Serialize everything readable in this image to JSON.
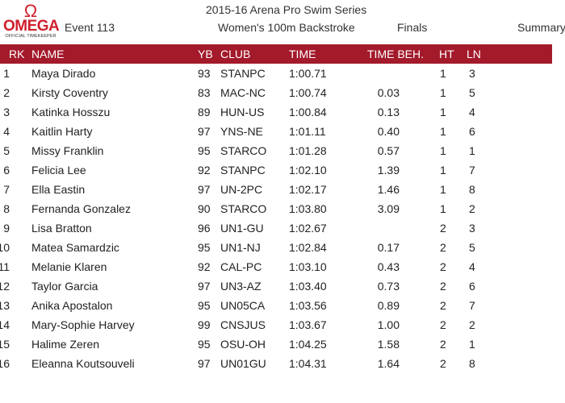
{
  "logo": {
    "symbol": "Ω",
    "word": "OMEGA",
    "sub": "OFFICIAL TIMEKEEPER"
  },
  "header": {
    "series": "2015-16 Arena Pro Swim Series",
    "event": "Event 113",
    "race": "Women's 100m Backstroke",
    "round": "Finals",
    "report": "Summary"
  },
  "columns": {
    "rk": "RK",
    "name": "NAME",
    "yb": "YB",
    "club": "CLUB",
    "time": "TIME",
    "beh": "TIME BEH.",
    "ht": "HT",
    "ln": "LN"
  },
  "colors": {
    "accent": "#a31a2b",
    "logo": "#d0202e"
  },
  "rows": [
    {
      "rk": "1",
      "name": "Maya Dirado",
      "yb": "93",
      "club": "STANPC",
      "time": "1:00.71",
      "beh": "",
      "ht": "1",
      "ln": "3"
    },
    {
      "rk": "2",
      "name": "Kirsty Coventry",
      "yb": "83",
      "club": "MAC-NC",
      "time": "1:00.74",
      "beh": "0.03",
      "ht": "1",
      "ln": "5"
    },
    {
      "rk": "3",
      "name": "Katinka Hosszu",
      "yb": "89",
      "club": "HUN-US",
      "time": "1:00.84",
      "beh": "0.13",
      "ht": "1",
      "ln": "4"
    },
    {
      "rk": "4",
      "name": "Kaitlin Harty",
      "yb": "97",
      "club": "YNS-NE",
      "time": "1:01.11",
      "beh": "0.40",
      "ht": "1",
      "ln": "6"
    },
    {
      "rk": "5",
      "name": "Missy Franklin",
      "yb": "95",
      "club": "STARCO",
      "time": "1:01.28",
      "beh": "0.57",
      "ht": "1",
      "ln": "1"
    },
    {
      "rk": "6",
      "name": "Felicia Lee",
      "yb": "92",
      "club": "STANPC",
      "time": "1:02.10",
      "beh": "1.39",
      "ht": "1",
      "ln": "7"
    },
    {
      "rk": "7",
      "name": "Ella Eastin",
      "yb": "97",
      "club": "UN-2PC",
      "time": "1:02.17",
      "beh": "1.46",
      "ht": "1",
      "ln": "8"
    },
    {
      "rk": "8",
      "name": "Fernanda Gonzalez",
      "yb": "90",
      "club": "STARCO",
      "time": "1:03.80",
      "beh": "3.09",
      "ht": "1",
      "ln": "2"
    },
    {
      "rk": "9",
      "name": "Lisa Bratton",
      "yb": "96",
      "club": "UN1-GU",
      "time": "1:02.67",
      "beh": "",
      "ht": "2",
      "ln": "3"
    },
    {
      "rk": "10",
      "name": "Matea Samardzic",
      "yb": "95",
      "club": "UN1-NJ",
      "time": "1:02.84",
      "beh": "0.17",
      "ht": "2",
      "ln": "5"
    },
    {
      "rk": "11",
      "name": "Melanie Klaren",
      "yb": "92",
      "club": "CAL-PC",
      "time": "1:03.10",
      "beh": "0.43",
      "ht": "2",
      "ln": "4"
    },
    {
      "rk": "12",
      "name": "Taylor Garcia",
      "yb": "97",
      "club": "UN3-AZ",
      "time": "1:03.40",
      "beh": "0.73",
      "ht": "2",
      "ln": "6"
    },
    {
      "rk": "13",
      "name": "Anika Apostalon",
      "yb": "95",
      "club": "UN05CA",
      "time": "1:03.56",
      "beh": "0.89",
      "ht": "2",
      "ln": "7"
    },
    {
      "rk": "14",
      "name": "Mary-Sophie Harvey",
      "yb": "99",
      "club": "CNSJUS",
      "time": "1:03.67",
      "beh": "1.00",
      "ht": "2",
      "ln": "2"
    },
    {
      "rk": "15",
      "name": "Halime Zeren",
      "yb": "95",
      "club": "OSU-OH",
      "time": "1:04.25",
      "beh": "1.58",
      "ht": "2",
      "ln": "1"
    },
    {
      "rk": "16",
      "name": "Eleanna Koutsouveli",
      "yb": "97",
      "club": "UN01GU",
      "time": "1:04.31",
      "beh": "1.64",
      "ht": "2",
      "ln": "8"
    }
  ]
}
